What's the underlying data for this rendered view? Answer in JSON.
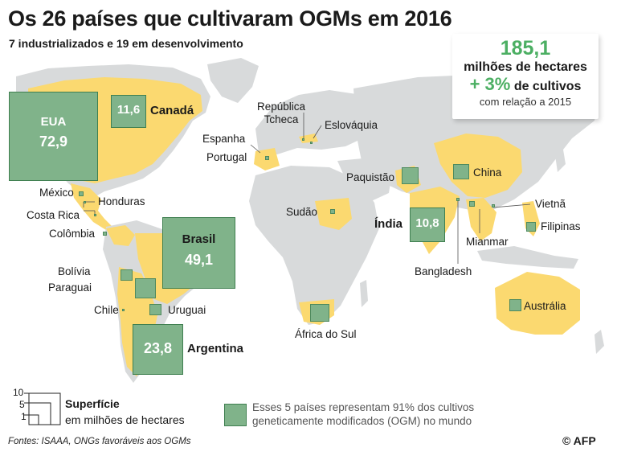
{
  "header": {
    "title": "Os 26 países que cultivaram OGMs em 2016",
    "subtitle": "7 industrializados e 19 em desenvolvimento"
  },
  "infobox": {
    "total_value": "185,1",
    "total_unit": "milhões de hectares",
    "growth_value": "+ 3%",
    "growth_label": "de cultivos",
    "growth_note": "com relação a 2015"
  },
  "top_countries": [
    {
      "name": "EUA",
      "value": "72,9",
      "hectares_millions": 72.9
    },
    {
      "name": "Brasil",
      "value": "49,1",
      "hectares_millions": 49.1
    },
    {
      "name": "Argentina",
      "value": "23,8",
      "hectares_millions": 23.8
    },
    {
      "name": "Canadá",
      "value": "11,6",
      "hectares_millions": 11.6
    },
    {
      "name": "Índia",
      "value": "10,8",
      "hectares_millions": 10.8
    }
  ],
  "other_countries": [
    "México",
    "Honduras",
    "Costa Rica",
    "Colômbia",
    "Bolívia",
    "Paraguai",
    "Chile",
    "Uruguai",
    "Espanha",
    "Portugal",
    "República Tcheca",
    "Eslováquia",
    "Sudão",
    "África do Sul",
    "Paquistão",
    "China",
    "Vietnã",
    "Filipinas",
    "Mianmar",
    "Bangladesh",
    "Austrália"
  ],
  "legend": {
    "scale_ticks": [
      "10",
      "5",
      "1"
    ],
    "scale_title": "Superfície",
    "scale_unit": "em milhões de hectares",
    "highlight_note_line1": "Esses 5 países representam 91% dos cultivos",
    "highlight_note_line2": "geneticamente modificados (OGM) no mundo"
  },
  "footer": {
    "source": "Fontes: ISAAA, ONGs favoráveis aos OGMs",
    "credit": "© AFP"
  },
  "colors": {
    "land": "#d8dadb",
    "gmo_country": "#fbd970",
    "square_fill": "#80b38a",
    "accent_green": "#4caf63"
  }
}
